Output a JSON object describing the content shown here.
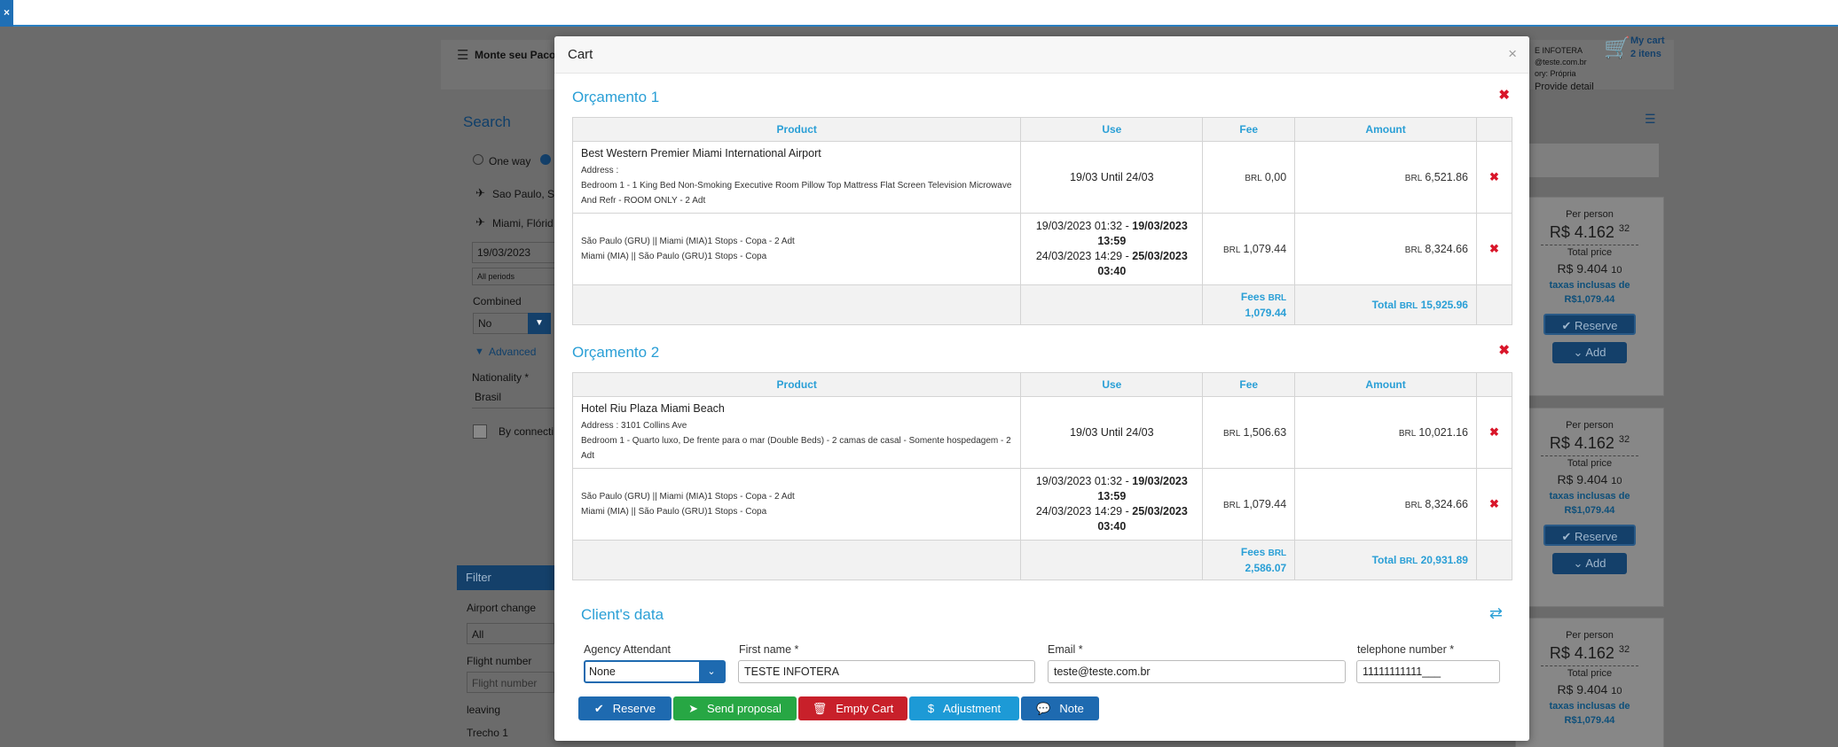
{
  "topbar": {
    "close_label": "×"
  },
  "background": {
    "header_left": "Monte seu Pacote",
    "user_line1": "E INFOTERA",
    "user_line2": "@teste.com.br",
    "user_line3": "ory: Própria",
    "user_line4": "Provide detail",
    "cart_label": "My cart",
    "cart_count": "2 itens",
    "search_title": "Search",
    "one_way": "One way",
    "origin": "Sao Paulo, Sc",
    "destination": "Miami, Flórid",
    "date": "19/03/2023",
    "periods": "All periods",
    "combined_label": "Combined",
    "combined_value": "No",
    "advanced": "Advanced",
    "nationality_label": "Nationality *",
    "nationality_value": "Brasil",
    "by_connection": "By connecti",
    "filter": "Filter",
    "airport_change": "Airport change",
    "airport_all": "All",
    "flight_number": "Flight number",
    "flight_placeholder": "Flight number",
    "leaving": "leaving",
    "trecho": "Trecho 1",
    "cards": [
      {
        "per_person": "Per person",
        "price": "R$ 4.162",
        "cents": "32",
        "total_label": "Total price",
        "total": "R$ 9.404",
        "total_cents": "10",
        "tax": "taxas inclusas de",
        "tax_value": "R$1,079.44",
        "reserve": "Reserve",
        "add": "Add"
      },
      {
        "per_person": "Per person",
        "price": "R$ 4.162",
        "cents": "32",
        "total_label": "Total price",
        "total": "R$ 9.404",
        "total_cents": "10",
        "tax": "taxas inclusas de",
        "tax_value": "R$1,079.44",
        "reserve": "Reserve",
        "add": "Add"
      },
      {
        "per_person": "Per person",
        "price": "R$ 4.162",
        "cents": "32",
        "total_label": "Total price",
        "total": "R$ 9.404",
        "total_cents": "10",
        "tax": "taxas inclusas de",
        "tax_value": "R$1,079.44"
      }
    ]
  },
  "modal": {
    "title": "Cart",
    "close": "×",
    "headers": {
      "product": "Product",
      "use": "Use",
      "fee": "Fee",
      "amount": "Amount"
    },
    "budgets": [
      {
        "title": "Orçamento 1",
        "hotel": {
          "name": "Best Western Premier Miami International Airport",
          "address": "Address :",
          "room": "Bedroom 1 - 1 King Bed Non-Smoking Executive Room Pillow Top Mattress Flat Screen Television Microwave And Refr - ROOM ONLY - 2 Adt",
          "use": "19/03 Until 24/03",
          "fee_cur": "BRL",
          "fee": "0,00",
          "amount_cur": "BRL",
          "amount": "6,521.86"
        },
        "flight": {
          "line1": "São Paulo (GRU) || Miami (MIA)1 Stops - Copa - 2 Adt",
          "line2": "Miami (MIA) || São Paulo (GRU)1 Stops - Copa",
          "dep1": "19/03/2023 01:32",
          "arr1a": "19/03/2023",
          "arr1b": "13:59",
          "dep2": "24/03/2023 14:29",
          "arr2a": "25/03/2023",
          "arr2b": "03:40",
          "fee_cur": "BRL",
          "fee": "1,079.44",
          "amount_cur": "BRL",
          "amount": "8,324.66"
        },
        "fees_label": "Fees",
        "fees_cur": "BRL",
        "fees": "1,079.44",
        "total_label": "Total",
        "total_cur": "BRL",
        "total": "15,925.96"
      },
      {
        "title": "Orçamento 2",
        "hotel": {
          "name": "Hotel Riu Plaza Miami Beach",
          "address": "Address : 3101 Collins Ave",
          "room": "Bedroom 1 - Quarto luxo, De frente para o mar (Double Beds) - 2 camas de casal - Somente hospedagem - 2 Adt",
          "use": "19/03 Until 24/03",
          "fee_cur": "BRL",
          "fee": "1,506.63",
          "amount_cur": "BRL",
          "amount": "10,021.16"
        },
        "flight": {
          "line1": "São Paulo (GRU) || Miami (MIA)1 Stops - Copa - 2 Adt",
          "line2": "Miami (MIA) || São Paulo (GRU)1 Stops - Copa",
          "dep1": "19/03/2023 01:32",
          "arr1a": "19/03/2023",
          "arr1b": "13:59",
          "dep2": "24/03/2023 14:29",
          "arr2a": "25/03/2023",
          "arr2b": "03:40",
          "fee_cur": "BRL",
          "fee": "1,079.44",
          "amount_cur": "BRL",
          "amount": "8,324.66"
        },
        "fees_label": "Fees",
        "fees_cur": "BRL",
        "fees": "2,586.07",
        "total_label": "Total",
        "total_cur": "BRL",
        "total": "20,931.89"
      }
    ],
    "client": {
      "title": "Client's data",
      "attendant_label": "Agency Attendant",
      "attendant_value": "None",
      "first_name_label": "First name *",
      "first_name_value": "TESTE INFOTERA",
      "email_label": "Email *",
      "email_value": "teste@teste.com.br",
      "phone_label": "telephone number *",
      "phone_value": "11111111111___"
    },
    "buttons": {
      "reserve": "Reserve",
      "send_proposal": "Send proposal",
      "empty_cart": "Empty Cart",
      "adjustment": "Adjustment",
      "note": "Note"
    },
    "colors": {
      "accent": "#2a9fd6",
      "danger": "#d9162a",
      "reserve": "#1e6ab0",
      "send": "#27a744",
      "empty": "#c8202a",
      "adjust": "#1d9ad6",
      "note": "#1e6ab0"
    }
  }
}
